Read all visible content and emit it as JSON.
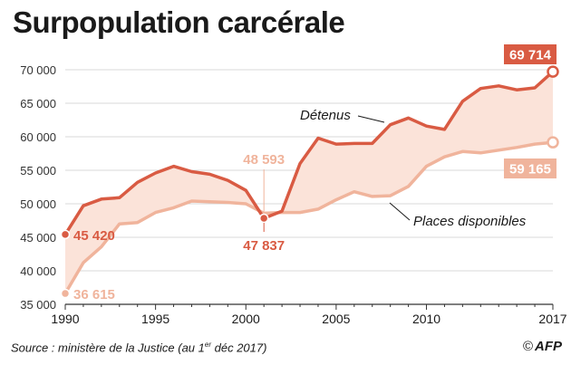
{
  "title": "Surpopulation carcérale",
  "source": {
    "prefix": "Source : ministère de la Justice (au 1",
    "sup": "er",
    "suffix": " déc 2017)"
  },
  "logo": {
    "copyright": "©",
    "brand": "AFP"
  },
  "colors": {
    "detenus": "#d95b43",
    "places": "#f0b49c",
    "fill": "#fbe3d9",
    "grid": "#d9d9d9",
    "axis": "#333333"
  },
  "chart_data": {
    "type": "area",
    "title": "Surpopulation carcérale",
    "ylim": [
      35000,
      70000
    ],
    "yticks": [
      35000,
      40000,
      45000,
      50000,
      55000,
      60000,
      65000,
      70000
    ],
    "ytick_labels": [
      "35 000",
      "40 000",
      "45 000",
      "50 000",
      "55 000",
      "60 000",
      "65 000",
      "70 000"
    ],
    "xlim": [
      1990,
      2017
    ],
    "xticks": [
      1990,
      1995,
      2000,
      2005,
      2010,
      2017
    ],
    "xtick_labels": [
      "1990",
      "1995",
      "2000",
      "2005",
      "2010",
      "2017"
    ],
    "grid": true,
    "series": [
      {
        "name": "Détenus",
        "x": [
          1990,
          1991,
          1992,
          1993,
          1994,
          1995,
          1996,
          1997,
          1998,
          1999,
          2000,
          2001,
          2002,
          2003,
          2004,
          2005,
          2006,
          2007,
          2008,
          2009,
          2010,
          2011,
          2012,
          2013,
          2014,
          2015,
          2016,
          2017
        ],
        "values": [
          45420,
          49700,
          50700,
          50900,
          53200,
          54600,
          55600,
          54800,
          54400,
          53500,
          52000,
          47837,
          48900,
          56000,
          59800,
          58900,
          59000,
          59000,
          61800,
          62800,
          61600,
          61100,
          65300,
          67200,
          67600,
          67000,
          67300,
          69714
        ]
      },
      {
        "name": "Places disponibles",
        "x": [
          1990,
          1991,
          1992,
          1993,
          1994,
          1995,
          1996,
          1997,
          1998,
          1999,
          2000,
          2001,
          2002,
          2003,
          2004,
          2005,
          2006,
          2007,
          2008,
          2009,
          2010,
          2011,
          2012,
          2013,
          2014,
          2015,
          2016,
          2017
        ],
        "values": [
          36615,
          41200,
          43600,
          47000,
          47200,
          48700,
          49400,
          50400,
          50300,
          50200,
          50000,
          48593,
          48700,
          48700,
          49200,
          50600,
          51800,
          51100,
          51200,
          52600,
          55600,
          57000,
          57800,
          57600,
          58000,
          58400,
          58900,
          59165
        ]
      }
    ],
    "annotations": [
      {
        "id": "det-start",
        "label": "45 420",
        "series": 0,
        "year": 1990
      },
      {
        "id": "det-2001",
        "label": "47 837",
        "series": 0,
        "year": 2001
      },
      {
        "id": "det-end",
        "label": "69 714",
        "series": 0,
        "year": 2017
      },
      {
        "id": "pl-start",
        "label": "36 615",
        "series": 1,
        "year": 1990
      },
      {
        "id": "pl-2001",
        "label": "48 593",
        "series": 1,
        "year": 2001
      },
      {
        "id": "pl-end",
        "label": "59 165",
        "series": 1,
        "year": 2017
      }
    ],
    "series_labels": [
      {
        "text": "Détenus",
        "series": 0
      },
      {
        "text": "Places disponibles",
        "series": 1
      }
    ]
  }
}
